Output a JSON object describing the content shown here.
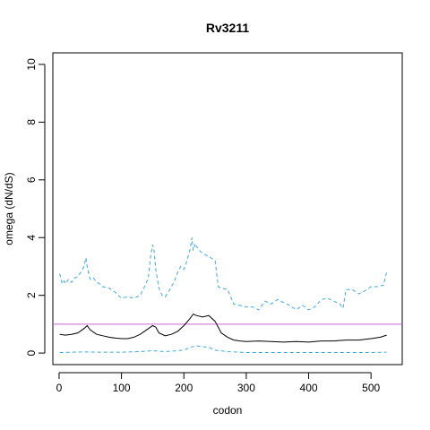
{
  "chart_data": {
    "type": "line",
    "title": "Rv3211",
    "xlabel": "codon",
    "ylabel": "omega (dN/dS)",
    "xlim": [
      -10,
      550
    ],
    "ylim": [
      -0.4,
      10.4
    ],
    "x_ticks": [
      0,
      100,
      200,
      300,
      400,
      500
    ],
    "y_ticks": [
      0,
      2,
      4,
      6,
      8,
      10
    ],
    "grid": false,
    "reference_line": {
      "y": 1,
      "color": "#cc66cc"
    },
    "colors": {
      "mean": "#000000",
      "upper": "#3fa8e0",
      "lower": "#3fa8e0"
    },
    "series": [
      {
        "line_style": "dashed",
        "x": [
          1,
          5,
          8,
          10,
          15,
          20,
          25,
          30,
          35,
          40,
          43,
          45,
          48,
          50,
          55,
          60,
          65,
          70,
          80,
          90,
          100,
          110,
          120,
          130,
          138,
          143,
          147,
          150,
          152,
          155,
          160,
          165,
          170,
          175,
          180,
          185,
          190,
          195,
          200,
          205,
          210,
          213,
          215,
          218,
          220,
          225,
          230,
          240,
          250,
          255,
          260,
          270,
          280,
          290,
          300,
          310,
          320,
          325,
          330,
          340,
          350,
          360,
          370,
          380,
          390,
          400,
          410,
          420,
          430,
          440,
          450,
          455,
          460,
          470,
          480,
          490,
          500,
          510,
          520,
          525
        ],
        "values": [
          2.75,
          2.4,
          2.5,
          2.4,
          2.55,
          2.45,
          2.6,
          2.65,
          2.8,
          3.0,
          3.3,
          3.0,
          2.7,
          2.55,
          2.6,
          2.45,
          2.4,
          2.3,
          2.25,
          2.1,
          1.9,
          1.95,
          1.9,
          2.0,
          2.35,
          2.6,
          3.4,
          3.75,
          3.6,
          2.9,
          2.25,
          2.0,
          1.95,
          2.1,
          2.3,
          2.5,
          2.8,
          3.0,
          2.9,
          3.2,
          3.6,
          4.0,
          3.55,
          3.8,
          3.7,
          3.55,
          3.45,
          3.35,
          3.2,
          2.3,
          2.25,
          2.2,
          1.7,
          1.65,
          1.6,
          1.6,
          1.5,
          1.65,
          1.8,
          1.7,
          1.85,
          1.75,
          1.65,
          1.5,
          1.65,
          1.5,
          1.6,
          1.85,
          1.9,
          1.8,
          1.7,
          1.55,
          2.2,
          2.2,
          2.05,
          2.15,
          2.3,
          2.3,
          2.35,
          2.8
        ]
      },
      {
        "line_style": "solid",
        "x": [
          1,
          10,
          20,
          30,
          40,
          45,
          50,
          60,
          70,
          80,
          90,
          100,
          110,
          120,
          130,
          140,
          150,
          155,
          160,
          170,
          180,
          190,
          200,
          210,
          215,
          220,
          230,
          240,
          250,
          260,
          270,
          280,
          290,
          300,
          320,
          340,
          360,
          380,
          400,
          420,
          440,
          460,
          480,
          500,
          515,
          525
        ],
        "values": [
          0.65,
          0.62,
          0.65,
          0.7,
          0.85,
          0.95,
          0.8,
          0.65,
          0.6,
          0.55,
          0.52,
          0.5,
          0.5,
          0.55,
          0.65,
          0.8,
          0.95,
          0.9,
          0.7,
          0.6,
          0.65,
          0.75,
          0.95,
          1.2,
          1.35,
          1.3,
          1.25,
          1.3,
          1.1,
          0.7,
          0.55,
          0.45,
          0.42,
          0.4,
          0.42,
          0.4,
          0.38,
          0.4,
          0.38,
          0.42,
          0.42,
          0.45,
          0.45,
          0.5,
          0.55,
          0.62
        ]
      },
      {
        "line_style": "dashed",
        "x": [
          1,
          40,
          60,
          100,
          130,
          150,
          170,
          200,
          210,
          220,
          240,
          250,
          270,
          300,
          400,
          500,
          525
        ],
        "values": [
          0.02,
          0.04,
          0.03,
          0.03,
          0.05,
          0.08,
          0.05,
          0.1,
          0.2,
          0.25,
          0.2,
          0.1,
          0.05,
          0.02,
          0.02,
          0.02,
          0.03
        ]
      }
    ]
  }
}
